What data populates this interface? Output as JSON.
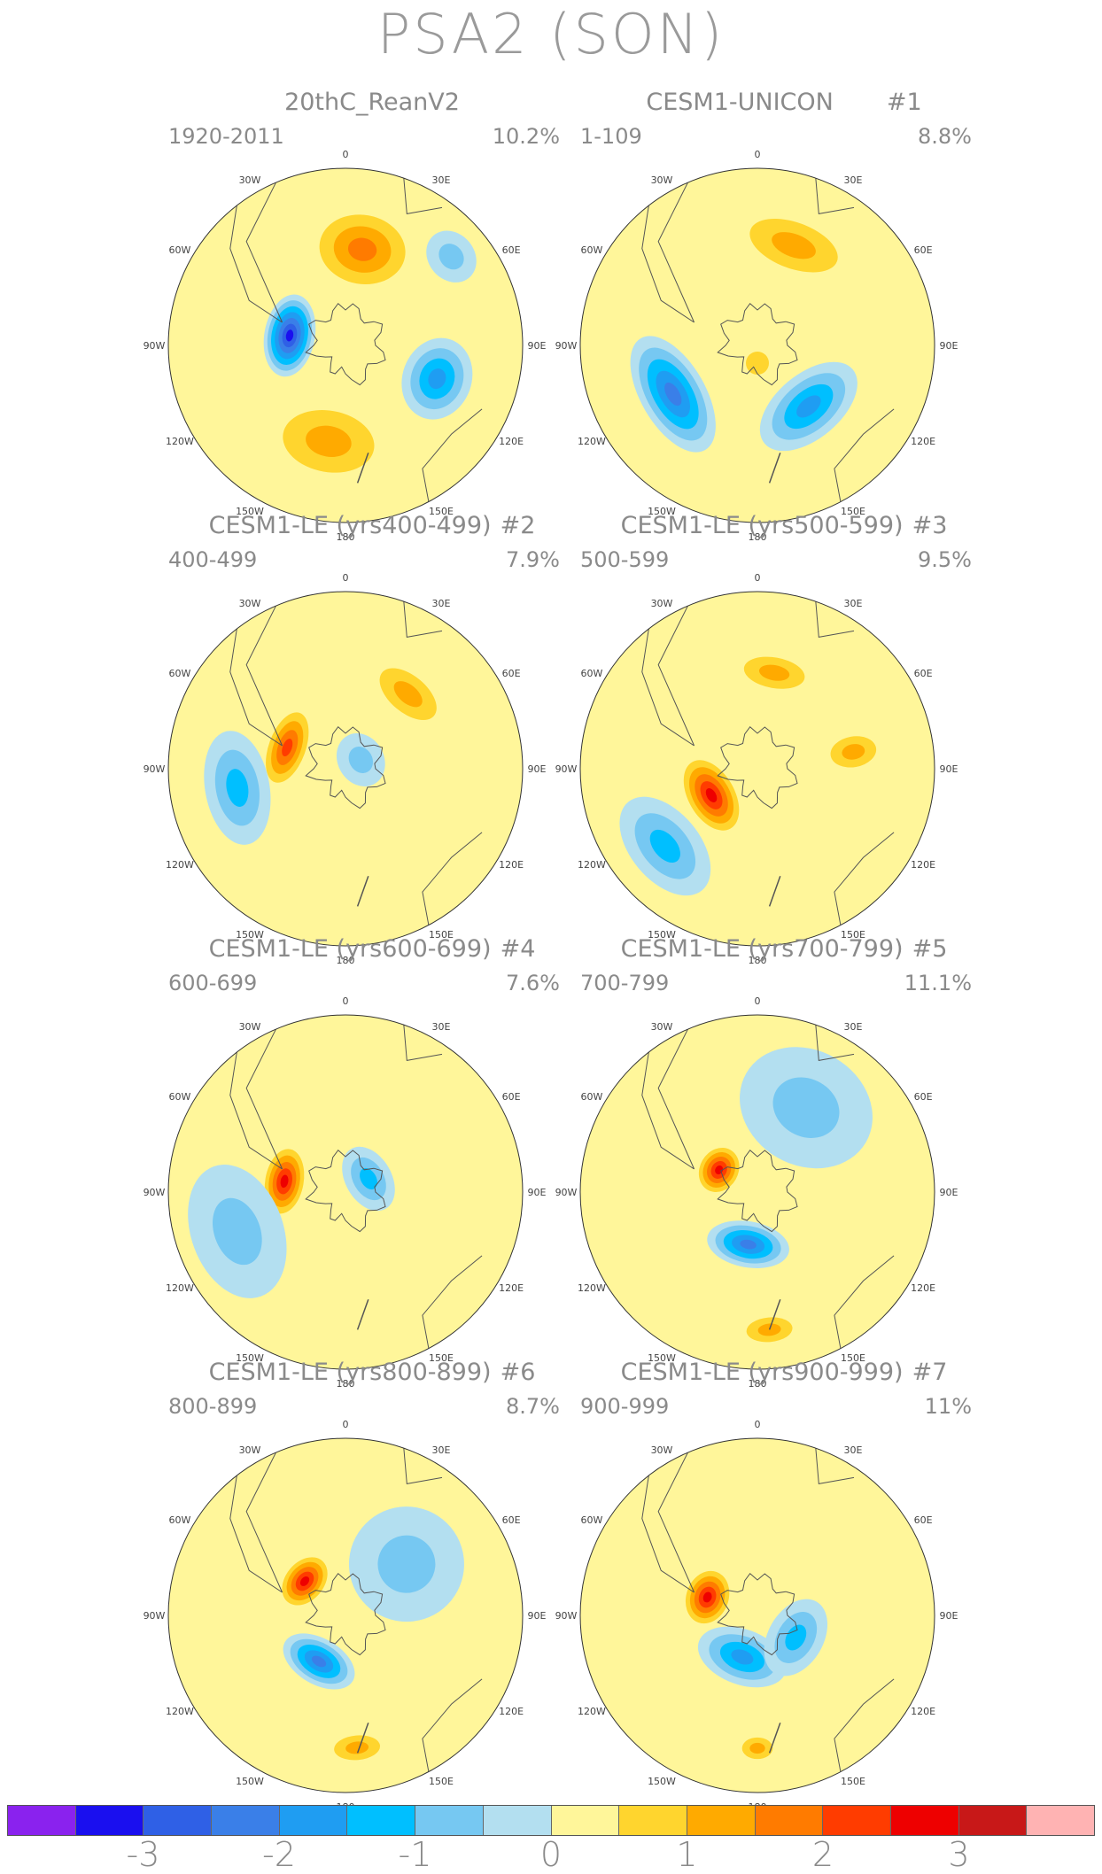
{
  "title": "PSA2 (SON)",
  "panels": [
    {
      "title": "20thC_ReanV2",
      "num": "",
      "range": "1920-2011",
      "pct": "10.2%",
      "anoms": [
        {
          "lon": -80,
          "r": 0.32,
          "v": -3.2,
          "sx": 0.18,
          "sy": 0.11
        },
        {
          "lon": -170,
          "r": 0.55,
          "v": 1.4,
          "sx": 0.3,
          "sy": 0.2
        },
        {
          "lon": 10,
          "r": 0.55,
          "v": 1.6,
          "sx": 0.25,
          "sy": 0.2
        },
        {
          "lon": 110,
          "r": 0.55,
          "v": -1.9,
          "sx": 0.18,
          "sy": 0.15
        },
        {
          "lon": 50,
          "r": 0.78,
          "v": -1.0,
          "sx": 0.12,
          "sy": 0.1
        }
      ]
    },
    {
      "title": "CESM1-UNICON",
      "num": "#1",
      "range": "1-109",
      "pct": "8.8%",
      "anoms": [
        {
          "lon": -120,
          "r": 0.55,
          "v": -2.2,
          "sx": 0.28,
          "sy": 0.14
        },
        {
          "lon": 140,
          "r": 0.45,
          "v": -2.0,
          "sx": 0.25,
          "sy": 0.14
        },
        {
          "lon": 20,
          "r": 0.6,
          "v": 1.4,
          "sx": 0.3,
          "sy": 0.15
        },
        {
          "lon": 180,
          "r": 0.1,
          "v": 1.0,
          "sx": 0.1,
          "sy": 0.1
        }
      ]
    },
    {
      "title": "CESM1-LE (yrs400-499)",
      "num": "#2",
      "range": "400-499",
      "pct": "7.9%",
      "anoms": [
        {
          "lon": -70,
          "r": 0.35,
          "v": 2.5,
          "sx": 0.2,
          "sy": 0.1
        },
        {
          "lon": -100,
          "r": 0.62,
          "v": -1.5,
          "sx": 0.25,
          "sy": 0.14
        },
        {
          "lon": 40,
          "r": 0.55,
          "v": 1.4,
          "sx": 0.22,
          "sy": 0.12
        },
        {
          "lon": 60,
          "r": 0.1,
          "v": -1.0,
          "sx": 0.12,
          "sy": 0.1
        }
      ]
    },
    {
      "title": "CESM1-LE (yrs500-599)",
      "num": "#3",
      "range": "500-599",
      "pct": "9.5%",
      "anoms": [
        {
          "lon": -120,
          "r": 0.3,
          "v": 2.9,
          "sx": 0.2,
          "sy": 0.12
        },
        {
          "lon": -130,
          "r": 0.68,
          "v": -1.2,
          "sx": 0.25,
          "sy": 0.15
        },
        {
          "lon": 80,
          "r": 0.55,
          "v": 1.4,
          "sx": 0.1,
          "sy": 0.15
        },
        {
          "lon": 10,
          "r": 0.55,
          "v": 1.2,
          "sx": 0.2,
          "sy": 0.1
        }
      ]
    },
    {
      "title": "CESM1-LE (yrs600-699)",
      "num": "#4",
      "range": "600-699",
      "pct": "7.6%",
      "anoms": [
        {
          "lon": -80,
          "r": 0.35,
          "v": 2.6,
          "sx": 0.17,
          "sy": 0.1
        },
        {
          "lon": -110,
          "r": 0.65,
          "v": -0.9,
          "sx": 0.3,
          "sy": 0.2
        },
        {
          "lon": 60,
          "r": 0.15,
          "v": -1.2,
          "sx": 0.15,
          "sy": 0.1
        }
      ]
    },
    {
      "title": "CESM1-LE (yrs700-799)",
      "num": "#5",
      "range": "700-799",
      "pct": "11.1%",
      "anoms": [
        {
          "lon": -60,
          "r": 0.25,
          "v": 2.6,
          "sx": 0.12,
          "sy": 0.1
        },
        {
          "lon": -170,
          "r": 0.3,
          "v": -2.5,
          "sx": 0.18,
          "sy": 0.1
        },
        {
          "lon": 175,
          "r": 0.78,
          "v": 1.4,
          "sx": 0.15,
          "sy": 0.08
        },
        {
          "lon": 30,
          "r": 0.55,
          "v": -0.9,
          "sx": 0.3,
          "sy": 0.25
        }
      ]
    },
    {
      "title": "CESM1-LE (yrs800-899)",
      "num": "#6",
      "range": "800-899",
      "pct": "8.7%",
      "anoms": [
        {
          "lon": -50,
          "r": 0.3,
          "v": 2.7,
          "sx": 0.14,
          "sy": 0.1
        },
        {
          "lon": -150,
          "r": 0.3,
          "v": -2.2,
          "sx": 0.17,
          "sy": 0.1
        },
        {
          "lon": 175,
          "r": 0.75,
          "v": 1.3,
          "sx": 0.15,
          "sy": 0.08
        },
        {
          "lon": 50,
          "r": 0.45,
          "v": -1.0,
          "sx": 0.25,
          "sy": 0.25
        }
      ]
    },
    {
      "title": "CESM1-LE (yrs900-999)",
      "num": "#7",
      "range": "900-999",
      "pct": "11%",
      "anoms": [
        {
          "lon": -70,
          "r": 0.3,
          "v": 2.7,
          "sx": 0.14,
          "sy": 0.11
        },
        {
          "lon": -160,
          "r": 0.25,
          "v": -1.9,
          "sx": 0.2,
          "sy": 0.12
        },
        {
          "lon": 120,
          "r": 0.25,
          "v": -1.5,
          "sx": 0.18,
          "sy": 0.12
        },
        {
          "lon": 180,
          "r": 0.75,
          "v": 1.4,
          "sx": 0.1,
          "sy": 0.07
        }
      ]
    }
  ],
  "lon_labels": [
    "0",
    "30E",
    "60E",
    "90E",
    "120E",
    "150E",
    "180",
    "150W",
    "120W",
    "90W",
    "60W",
    "30W"
  ],
  "colorbar": {
    "colors": [
      "#8a22ee",
      "#1a0fef",
      "#2f60e6",
      "#3a7fe8",
      "#1f9df2",
      "#00bfff",
      "#76c8f2",
      "#b3dff0",
      "#fff69a",
      "#ffd52e",
      "#ffaa00",
      "#ff7b00",
      "#ff3c00",
      "#ee0000",
      "#c81818",
      "#ffb3b3"
    ],
    "ticks": [
      "-3",
      "-2",
      "-1",
      "0",
      "1",
      "2",
      "3"
    ]
  }
}
